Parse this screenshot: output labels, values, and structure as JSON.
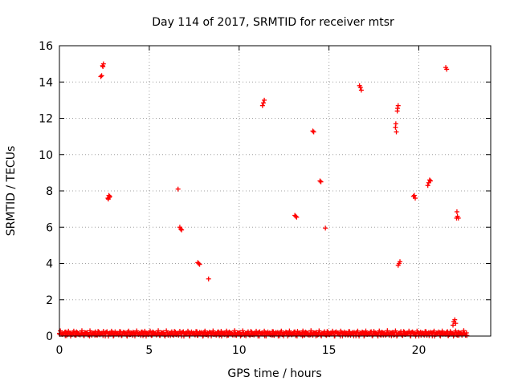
{
  "chart_data": {
    "type": "scatter",
    "title": "Day 114 of 2017, SRMTID for receiver mtsr",
    "xlabel": "GPS time / hours",
    "ylabel": "SRMTID / TECUs",
    "xlim": [
      0,
      24
    ],
    "ylim": [
      0,
      16
    ],
    "xticks": [
      0,
      5,
      10,
      15,
      20
    ],
    "yticks": [
      0,
      2,
      4,
      6,
      8,
      10,
      12,
      14,
      16
    ],
    "grid": true,
    "marker": "plus",
    "color": "#ff0000",
    "series": [
      {
        "name": "SRMTID",
        "points": [
          [
            2.3,
            14.3
          ],
          [
            2.35,
            14.35
          ],
          [
            2.4,
            14.9
          ],
          [
            2.45,
            15.0
          ],
          [
            2.42,
            14.85
          ],
          [
            2.7,
            7.6
          ],
          [
            2.75,
            7.75
          ],
          [
            2.8,
            7.7
          ],
          [
            2.72,
            7.55
          ],
          [
            2.78,
            7.65
          ],
          [
            6.6,
            8.1
          ],
          [
            6.7,
            6.0
          ],
          [
            6.75,
            5.9
          ],
          [
            6.8,
            5.85
          ],
          [
            7.7,
            4.05
          ],
          [
            7.75,
            4.0
          ],
          [
            7.8,
            3.95
          ],
          [
            8.3,
            3.15
          ],
          [
            11.3,
            12.7
          ],
          [
            11.35,
            12.85
          ],
          [
            11.4,
            13.0
          ],
          [
            13.1,
            6.65
          ],
          [
            13.15,
            6.6
          ],
          [
            13.2,
            6.55
          ],
          [
            14.1,
            11.3
          ],
          [
            14.15,
            11.25
          ],
          [
            14.5,
            8.55
          ],
          [
            14.55,
            8.5
          ],
          [
            14.8,
            5.95
          ],
          [
            16.7,
            13.8
          ],
          [
            16.75,
            13.7
          ],
          [
            16.8,
            13.55
          ],
          [
            18.7,
            11.5
          ],
          [
            18.72,
            11.7
          ],
          [
            18.75,
            11.25
          ],
          [
            18.8,
            12.4
          ],
          [
            18.82,
            12.55
          ],
          [
            18.85,
            12.7
          ],
          [
            18.85,
            3.9
          ],
          [
            18.9,
            4.0
          ],
          [
            18.95,
            4.1
          ],
          [
            19.7,
            7.7
          ],
          [
            19.75,
            7.75
          ],
          [
            19.8,
            7.6
          ],
          [
            20.5,
            8.3
          ],
          [
            20.55,
            8.45
          ],
          [
            20.6,
            8.6
          ],
          [
            20.65,
            8.55
          ],
          [
            21.5,
            14.8
          ],
          [
            21.55,
            14.7
          ],
          [
            21.9,
            0.6
          ],
          [
            21.95,
            0.8
          ],
          [
            22.0,
            0.9
          ],
          [
            22.05,
            0.7
          ],
          [
            22.1,
            6.5
          ],
          [
            22.12,
            6.85
          ],
          [
            22.15,
            6.6
          ],
          [
            22.2,
            6.5
          ]
        ],
        "baseline": {
          "x_range": [
            0,
            22.7
          ],
          "level_min": 0.0,
          "level_max": 0.3,
          "step": 0.05
        }
      }
    ]
  }
}
